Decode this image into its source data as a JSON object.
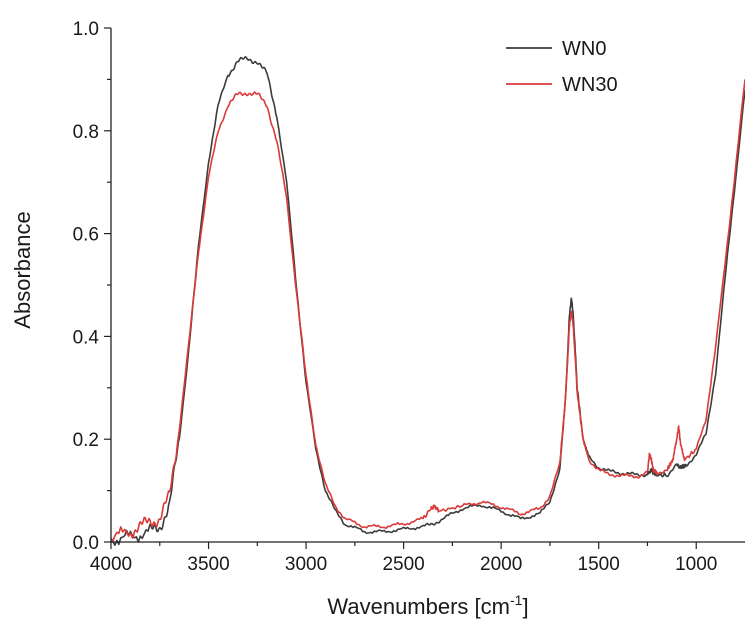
{
  "chart_data": {
    "type": "line",
    "xlabel": {
      "text": "Wavenumbers [cm",
      "sup": "-1",
      "suffix": "]"
    },
    "ylabel": "Absorbance",
    "xlim": [
      4000,
      750
    ],
    "ylim": [
      0,
      1.0
    ],
    "x_reversed": true,
    "x_ticks": [
      4000,
      3500,
      3000,
      2500,
      2000,
      1500,
      1000
    ],
    "x_tick_labels": [
      "4000",
      "3500",
      "3000",
      "2500",
      "2000",
      "1500",
      "1000"
    ],
    "y_ticks": [
      0,
      0.2,
      0.4,
      0.6,
      0.8,
      1.0
    ],
    "y_tick_labels": [
      "0.0",
      "0.2",
      "0.4",
      "0.6",
      "0.8",
      "1.0"
    ],
    "grid": false,
    "legend_position": "top-right",
    "series": [
      {
        "name": "WN0",
        "color": "#3c3c3c",
        "points": [
          [
            4000,
            0.005
          ],
          [
            3900,
            0.01
          ],
          [
            3800,
            0.02
          ],
          [
            3750,
            0.03
          ],
          [
            3700,
            0.07
          ],
          [
            3650,
            0.2
          ],
          [
            3600,
            0.38
          ],
          [
            3550,
            0.58
          ],
          [
            3500,
            0.74
          ],
          [
            3450,
            0.85
          ],
          [
            3400,
            0.91
          ],
          [
            3350,
            0.935
          ],
          [
            3300,
            0.94
          ],
          [
            3250,
            0.935
          ],
          [
            3200,
            0.91
          ],
          [
            3150,
            0.83
          ],
          [
            3100,
            0.7
          ],
          [
            3050,
            0.5
          ],
          [
            3000,
            0.31
          ],
          [
            2950,
            0.18
          ],
          [
            2900,
            0.1
          ],
          [
            2850,
            0.06
          ],
          [
            2800,
            0.035
          ],
          [
            2700,
            0.02
          ],
          [
            2600,
            0.02
          ],
          [
            2500,
            0.025
          ],
          [
            2400,
            0.03
          ],
          [
            2350,
            0.035
          ],
          [
            2300,
            0.045
          ],
          [
            2200,
            0.065
          ],
          [
            2100,
            0.072
          ],
          [
            2000,
            0.06
          ],
          [
            1900,
            0.045
          ],
          [
            1800,
            0.055
          ],
          [
            1750,
            0.08
          ],
          [
            1700,
            0.14
          ],
          [
            1670,
            0.28
          ],
          [
            1650,
            0.44
          ],
          [
            1640,
            0.475
          ],
          [
            1630,
            0.44
          ],
          [
            1610,
            0.3
          ],
          [
            1580,
            0.2
          ],
          [
            1550,
            0.165
          ],
          [
            1500,
            0.145
          ],
          [
            1450,
            0.138
          ],
          [
            1400,
            0.135
          ],
          [
            1350,
            0.133
          ],
          [
            1300,
            0.13
          ],
          [
            1250,
            0.132
          ],
          [
            1230,
            0.14
          ],
          [
            1210,
            0.13
          ],
          [
            1150,
            0.13
          ],
          [
            1100,
            0.15
          ],
          [
            1080,
            0.145
          ],
          [
            1050,
            0.15
          ],
          [
            1000,
            0.17
          ],
          [
            950,
            0.21
          ],
          [
            900,
            0.33
          ],
          [
            850,
            0.52
          ],
          [
            800,
            0.7
          ],
          [
            750,
            0.88
          ]
        ]
      },
      {
        "name": "WN30",
        "color": "#d93a3a",
        "points": [
          [
            4000,
            0.01
          ],
          [
            3900,
            0.02
          ],
          [
            3850,
            0.03
          ],
          [
            3800,
            0.04
          ],
          [
            3750,
            0.045
          ],
          [
            3700,
            0.09
          ],
          [
            3650,
            0.22
          ],
          [
            3600,
            0.39
          ],
          [
            3550,
            0.57
          ],
          [
            3500,
            0.71
          ],
          [
            3450,
            0.8
          ],
          [
            3400,
            0.85
          ],
          [
            3350,
            0.87
          ],
          [
            3300,
            0.875
          ],
          [
            3250,
            0.87
          ],
          [
            3200,
            0.85
          ],
          [
            3150,
            0.78
          ],
          [
            3100,
            0.67
          ],
          [
            3050,
            0.49
          ],
          [
            3000,
            0.32
          ],
          [
            2950,
            0.19
          ],
          [
            2900,
            0.11
          ],
          [
            2850,
            0.07
          ],
          [
            2800,
            0.045
          ],
          [
            2700,
            0.03
          ],
          [
            2600,
            0.03
          ],
          [
            2500,
            0.035
          ],
          [
            2400,
            0.045
          ],
          [
            2360,
            0.065
          ],
          [
            2340,
            0.07
          ],
          [
            2320,
            0.06
          ],
          [
            2200,
            0.07
          ],
          [
            2100,
            0.078
          ],
          [
            2000,
            0.068
          ],
          [
            1900,
            0.055
          ],
          [
            1800,
            0.065
          ],
          [
            1750,
            0.09
          ],
          [
            1700,
            0.15
          ],
          [
            1670,
            0.28
          ],
          [
            1650,
            0.42
          ],
          [
            1640,
            0.45
          ],
          [
            1630,
            0.42
          ],
          [
            1610,
            0.29
          ],
          [
            1580,
            0.2
          ],
          [
            1550,
            0.16
          ],
          [
            1500,
            0.14
          ],
          [
            1450,
            0.132
          ],
          [
            1400,
            0.13
          ],
          [
            1350,
            0.128
          ],
          [
            1300,
            0.128
          ],
          [
            1250,
            0.135
          ],
          [
            1240,
            0.17
          ],
          [
            1230,
            0.16
          ],
          [
            1220,
            0.14
          ],
          [
            1200,
            0.135
          ],
          [
            1150,
            0.14
          ],
          [
            1120,
            0.16
          ],
          [
            1100,
            0.2
          ],
          [
            1090,
            0.225
          ],
          [
            1080,
            0.19
          ],
          [
            1060,
            0.16
          ],
          [
            1000,
            0.18
          ],
          [
            950,
            0.24
          ],
          [
            900,
            0.38
          ],
          [
            850,
            0.55
          ],
          [
            800,
            0.72
          ],
          [
            750,
            0.9
          ]
        ]
      }
    ]
  }
}
